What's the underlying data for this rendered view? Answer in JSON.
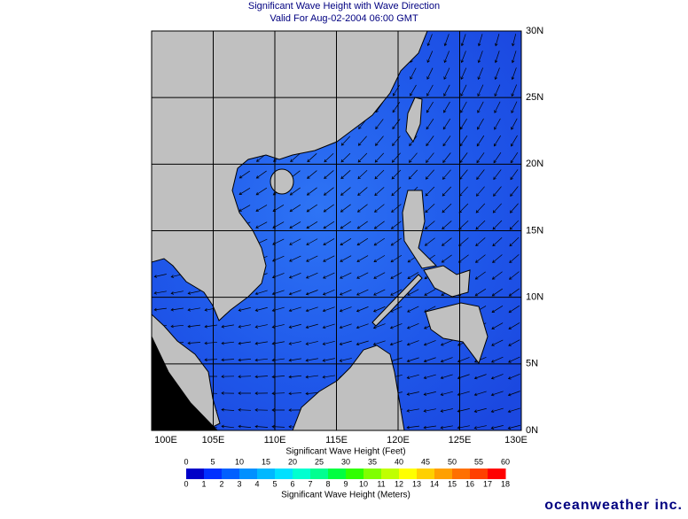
{
  "header": {
    "title": "Significant Wave Height with Wave Direction",
    "subtitle": "Valid For Aug-02-2004 06:00 GMT"
  },
  "map": {
    "lat_labels": [
      "30N",
      "25N",
      "20N",
      "15N",
      "10N",
      "5N",
      "0N"
    ],
    "lon_labels": [
      "100E",
      "105E",
      "110E",
      "115E",
      "120E",
      "125E",
      "130E"
    ]
  },
  "legend": {
    "feet_title": "Significant Wave Height (Feet)",
    "feet_ticks": [
      0,
      5,
      10,
      15,
      20,
      25,
      30,
      35,
      40,
      45,
      50,
      55,
      60
    ],
    "meters_title": "Significant Wave Height (Meters)",
    "meters_ticks": [
      0,
      1,
      2,
      3,
      4,
      5,
      6,
      7,
      8,
      9,
      10,
      11,
      12,
      13,
      14,
      15,
      16,
      17,
      18
    ]
  },
  "branding": "oceanweather inc."
}
